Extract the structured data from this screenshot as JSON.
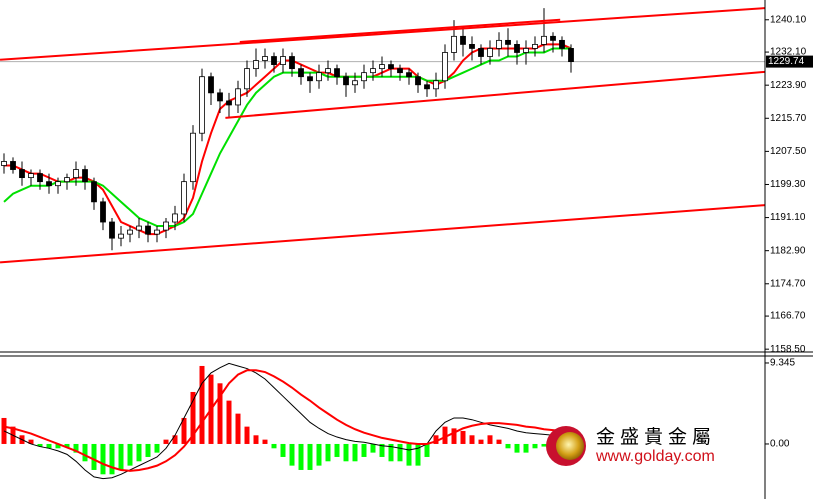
{
  "chart_data": [
    {
      "type": "candlestick",
      "open": [
        1204,
        1205,
        1203,
        1201,
        1202,
        1200,
        1199,
        1200,
        1201,
        1203,
        1200,
        1195,
        1190,
        1186,
        1187,
        1188,
        1189,
        1187,
        1188,
        1190,
        1192,
        1200,
        1212,
        1226,
        1222,
        1220,
        1219,
        1223,
        1228,
        1230,
        1231,
        1229,
        1231,
        1228,
        1226,
        1225,
        1227,
        1228,
        1226,
        1224,
        1225,
        1227,
        1228,
        1229,
        1228,
        1227,
        1226,
        1224,
        1223,
        1225,
        1232,
        1236,
        1234,
        1233,
        1231,
        1233,
        1235,
        1234,
        1232,
        1233,
        1234,
        1236,
        1235,
        1233
      ],
      "high": [
        1207,
        1206,
        1205,
        1203,
        1203,
        1202,
        1201,
        1202,
        1205,
        1204,
        1201,
        1196,
        1191,
        1189,
        1189,
        1191,
        1190,
        1189,
        1191,
        1194,
        1202,
        1214,
        1228,
        1227,
        1223,
        1222,
        1225,
        1230,
        1233,
        1233,
        1232,
        1233,
        1232,
        1229,
        1227,
        1229,
        1230,
        1229,
        1227,
        1227,
        1229,
        1230,
        1231,
        1230,
        1229,
        1228,
        1227,
        1225,
        1227,
        1234,
        1240,
        1238,
        1236,
        1234,
        1235,
        1237,
        1238,
        1235,
        1235,
        1236,
        1243,
        1237,
        1236,
        1234
      ],
      "low": [
        1202,
        1202,
        1199,
        1199,
        1198,
        1197,
        1197,
        1198,
        1199,
        1198,
        1193,
        1188,
        1183,
        1184,
        1185,
        1186,
        1185,
        1185,
        1186,
        1188,
        1190,
        1198,
        1210,
        1219,
        1217,
        1216,
        1217,
        1221,
        1226,
        1228,
        1227,
        1227,
        1226,
        1224,
        1222,
        1223,
        1225,
        1224,
        1221,
        1222,
        1223,
        1225,
        1226,
        1226,
        1225,
        1224,
        1222,
        1221,
        1221,
        1223,
        1230,
        1231,
        1230,
        1229,
        1229,
        1231,
        1231,
        1229,
        1229,
        1231,
        1232,
        1232,
        1231,
        1227
      ],
      "close": [
        1205,
        1203,
        1201,
        1202,
        1200,
        1199,
        1200,
        1201,
        1203,
        1200,
        1195,
        1190,
        1186,
        1187,
        1188,
        1189,
        1187,
        1188,
        1190,
        1192,
        1200,
        1212,
        1226,
        1222,
        1220,
        1219,
        1223,
        1228,
        1230,
        1231,
        1229,
        1231,
        1228,
        1226,
        1225,
        1227,
        1228,
        1226,
        1224,
        1225,
        1227,
        1228,
        1229,
        1228,
        1227,
        1226,
        1224,
        1223,
        1225,
        1232,
        1236,
        1234,
        1233,
        1231,
        1233,
        1235,
        1234,
        1232,
        1233,
        1234,
        1236,
        1235,
        1233,
        1229.74
      ],
      "up_color": "#ffffff",
      "down_color": "#000000",
      "lines": [
        {
          "color": "#ff0000",
          "values": [
            1204,
            1204,
            1203,
            1202,
            1202,
            1201,
            1200,
            1200,
            1201,
            1201,
            1200,
            1198,
            1194,
            1190,
            1189,
            1188,
            1187,
            1187,
            1188,
            1189,
            1191,
            1196,
            1205,
            1212,
            1218,
            1220,
            1221,
            1222,
            1224,
            1226,
            1228,
            1230,
            1230,
            1229,
            1228,
            1227,
            1227,
            1226,
            1226,
            1226,
            1226,
            1226,
            1227,
            1228,
            1228,
            1228,
            1226,
            1225,
            1224,
            1225,
            1227,
            1230,
            1232,
            1233,
            1233,
            1233,
            1233,
            1233,
            1233,
            1233,
            1234,
            1234,
            1234,
            1233
          ]
        },
        {
          "color": "#00e000",
          "values": [
            1195,
            1197,
            1198,
            1199,
            1199,
            1199,
            1200,
            1200,
            1200,
            1200,
            1200,
            1199,
            1197,
            1195,
            1193,
            1191,
            1190,
            1189,
            1189,
            1189,
            1190,
            1192,
            1197,
            1202,
            1207,
            1211,
            1215,
            1219,
            1222,
            1224,
            1226,
            1227,
            1227,
            1227,
            1227,
            1227,
            1226,
            1226,
            1226,
            1226,
            1226,
            1226,
            1226,
            1226,
            1226,
            1226,
            1226,
            1225,
            1225,
            1225,
            1226,
            1227,
            1228,
            1229,
            1230,
            1230,
            1231,
            1231,
            1232,
            1232,
            1232,
            1233,
            1233,
            1233
          ]
        }
      ],
      "trendlines": [
        {
          "color": "#ff0000",
          "x": [
            -0.44,
            84.6
          ],
          "y": [
            1230.2,
            1243.0
          ]
        },
        {
          "color": "#ff0000",
          "x": [
            26.2,
            61.8
          ],
          "y": [
            1234.6,
            1240.1
          ]
        },
        {
          "color": "#ff0000",
          "x": [
            24.6,
            84.6
          ],
          "y": [
            1215.8,
            1227.2
          ]
        },
        {
          "color": "#ff0000",
          "x": [
            -0.44,
            84.6
          ],
          "y": [
            1180.0,
            1194.2
          ]
        }
      ],
      "current_price": {
        "value": 1229.74,
        "label": "1229.74"
      },
      "ylim": [
        1157.8,
        1245.0
      ],
      "yticks": [
        {
          "value": 1240.1,
          "label": "1240.10"
        },
        {
          "value": 1232.1,
          "label": "1232.10"
        },
        {
          "value": 1223.9,
          "label": "1223.90"
        },
        {
          "value": 1215.7,
          "label": "1215.70"
        },
        {
          "value": 1207.5,
          "label": "1207.50"
        },
        {
          "value": 1199.3,
          "label": "1199.30"
        },
        {
          "value": 1191.1,
          "label": "1191.10"
        },
        {
          "value": 1182.9,
          "label": "1182.90"
        },
        {
          "value": 1174.7,
          "label": "1174.70"
        },
        {
          "value": 1166.7,
          "label": "1166.70"
        },
        {
          "value": 1158.5,
          "label": "1158.50"
        }
      ]
    },
    {
      "type": "macd",
      "values": [
        3,
        2,
        1,
        0.5,
        -0.3,
        -0.5,
        -0.5,
        -0.4,
        -1,
        -2,
        -3,
        -3.5,
        -3.5,
        -3,
        -2.5,
        -2,
        -1.5,
        -1,
        0.5,
        1,
        3,
        6,
        9,
        8,
        7,
        5,
        3.5,
        2,
        1,
        0.5,
        -0.5,
        -1.5,
        -2.5,
        -3,
        -3,
        -2.5,
        -2,
        -1.5,
        -2,
        -2,
        -1.5,
        -1,
        -1.5,
        -2,
        -2,
        -2.5,
        -2.5,
        -1.5,
        1,
        2,
        1.8,
        1.5,
        1,
        0.5,
        1,
        0.5,
        -0.5,
        -1,
        -1,
        -0.5,
        -0.3,
        0.5,
        0.3,
        -0.2
      ],
      "up_color": "#ff0000",
      "down_color": "#00ff00",
      "lines": [
        {
          "color": "#000000",
          "values": [
            1.5,
            1,
            0.5,
            0,
            -0.3,
            -0.5,
            -0.8,
            -1.2,
            -2,
            -3,
            -3.8,
            -4,
            -3.9,
            -3.5,
            -3,
            -2.5,
            -2,
            -1.5,
            -0.5,
            1,
            3,
            5,
            7,
            8.2,
            8.8,
            9.3,
            9,
            8.7,
            8.2,
            7.5,
            6.5,
            5.5,
            4.5,
            3.5,
            2.5,
            1.8,
            1.2,
            0.8,
            0.5,
            0.3,
            0.2,
            0,
            -0.2,
            -0.3,
            -0.5,
            -0.7,
            -0.5,
            0,
            1.5,
            2.5,
            3,
            3,
            2.8,
            2.5,
            2.2,
            2,
            1.8,
            1.5,
            1.3,
            1.2,
            1.1,
            1,
            0.9,
            0.8
          ]
        },
        {
          "color": "#ff0000",
          "values": [
            2,
            1.8,
            1.5,
            1.2,
            0.8,
            0.4,
            0,
            -0.4,
            -0.8,
            -1.3,
            -1.8,
            -2.3,
            -2.7,
            -3,
            -3.1,
            -3,
            -2.8,
            -2.5,
            -2,
            -1.3,
            -0.3,
            1,
            2.5,
            4,
            5.5,
            7,
            8,
            8.5,
            8.5,
            8.3,
            7.8,
            7.2,
            6.5,
            5.7,
            5,
            4.2,
            3.5,
            2.8,
            2.2,
            1.7,
            1.3,
            1,
            0.7,
            0.5,
            0.3,
            0.1,
            0,
            0,
            0.3,
            0.8,
            1.3,
            1.8,
            2.1,
            2.3,
            2.4,
            2.4,
            2.3,
            2.2,
            2,
            1.9,
            1.7,
            1.6,
            1.5,
            1.4
          ]
        }
      ],
      "ylim": [
        -6.35,
        10.15
      ],
      "yticks": [
        {
          "value": 9.345,
          "label": "9.345"
        },
        {
          "value": 0,
          "label": "0.00"
        }
      ]
    }
  ],
  "watermark": {
    "brand": "金盛貴金屬",
    "url": "www.golday.com"
  }
}
